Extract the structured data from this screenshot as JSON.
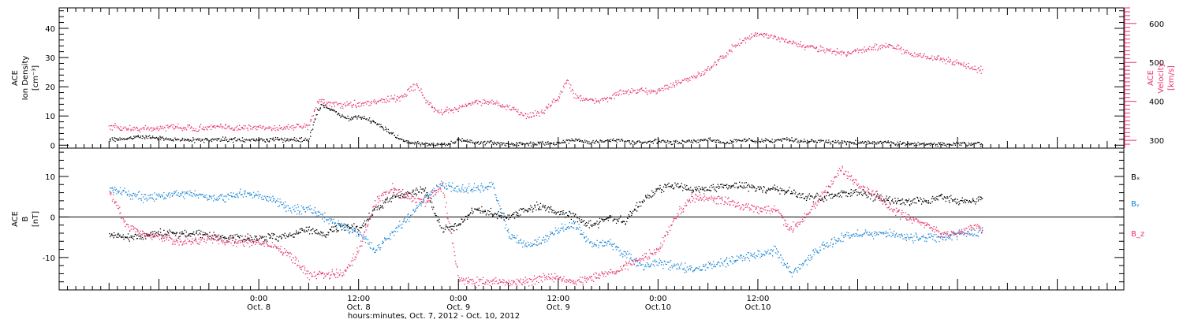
{
  "chart_data": [
    {
      "type": "scatter",
      "panel": "top",
      "ylabel_left": [
        "ACE",
        "Ion Density",
        "[cm⁻³]"
      ],
      "ylabel_right": [
        "ACE",
        "Velocity",
        "[km/s]"
      ],
      "yticks_left": [
        "0",
        "10",
        "20",
        "30",
        "40"
      ],
      "ylim_left": [
        -1,
        47
      ],
      "yticks_right": [
        "300",
        "400",
        "500",
        "600"
      ],
      "ylim_right": [
        280,
        640
      ],
      "colors": {
        "density": "#000000",
        "velocity": "#e8336b"
      },
      "series": [
        {
          "id": "density",
          "axis": "left",
          "x_hours": [
            -18,
            -16,
            -14,
            -12,
            -10,
            -8,
            -6,
            -4,
            -2,
            0,
            2,
            4,
            6,
            7,
            7.5,
            8,
            9,
            10,
            11,
            12,
            13,
            14,
            15,
            16,
            16.5,
            17,
            18,
            19,
            20,
            21,
            22,
            23,
            24,
            26,
            28,
            30,
            32,
            34,
            36,
            38,
            40,
            42,
            44,
            46,
            48,
            50,
            52,
            54,
            56,
            58,
            60,
            62,
            64,
            66,
            68,
            70,
            72,
            74,
            76,
            78,
            80,
            82,
            84,
            86,
            87
          ],
          "values": [
            2,
            2.5,
            3,
            2.5,
            2,
            2,
            2,
            2,
            2,
            2,
            2,
            2,
            2,
            12,
            14,
            13,
            12,
            10,
            9,
            10,
            9,
            8,
            6,
            4,
            3,
            2,
            1,
            1,
            0.5,
            0.5,
            0.5,
            0.5,
            2,
            1,
            1,
            0.5,
            0.5,
            1,
            1,
            2,
            1,
            2,
            1.5,
            1,
            1.5,
            1,
            1.5,
            2,
            1,
            2,
            1.5,
            2,
            2,
            1.5,
            1.5,
            1,
            1,
            1,
            1,
            0.5,
            0.5,
            0.5,
            0.5,
            0.5,
            0.5
          ]
        },
        {
          "id": "velocity",
          "axis": "right",
          "x_hours": [
            -18,
            -16,
            -14,
            -12,
            -10,
            -8,
            -6,
            -4,
            -2,
            0,
            2,
            4,
            6,
            7,
            7.5,
            8,
            10,
            12,
            14,
            16,
            17,
            18,
            19,
            20,
            21,
            22,
            24,
            26,
            28,
            30,
            32,
            34,
            35,
            36,
            37,
            38,
            40,
            42,
            44,
            46,
            48,
            50,
            52,
            54,
            56,
            58,
            60,
            62,
            64,
            66,
            68,
            70,
            72,
            74,
            76,
            78,
            80,
            82,
            84,
            86,
            87
          ],
          "values": [
            335,
            332,
            330,
            333,
            336,
            332,
            334,
            335,
            333,
            335,
            333,
            336,
            337,
            400,
            405,
            395,
            392,
            395,
            400,
            408,
            410,
            430,
            445,
            405,
            380,
            372,
            385,
            400,
            400,
            385,
            365,
            370,
            395,
            410,
            455,
            415,
            400,
            410,
            425,
            428,
            430,
            445,
            460,
            485,
            520,
            555,
            575,
            565,
            550,
            540,
            535,
            525,
            530,
            540,
            545,
            525,
            515,
            510,
            500,
            485,
            480
          ]
        }
      ]
    },
    {
      "type": "scatter",
      "panel": "bottom",
      "ylabel_left": [
        "ACE",
        "B",
        "[nT]"
      ],
      "yticks_left": [
        "-10",
        "0",
        "10"
      ],
      "ylim_left": [
        -18,
        17
      ],
      "zero_line": true,
      "legend_placement": "right",
      "legend": [
        {
          "label": "Bₓ",
          "color": "#000000"
        },
        {
          "label": "Bᵧ",
          "color": "#1a86d6"
        },
        {
          "label": "B_z",
          "color": "#e8336b"
        }
      ],
      "series": [
        {
          "id": "bx",
          "x_hours": [
            -18,
            -16,
            -14,
            -12,
            -10,
            -8,
            -6,
            -4,
            -2,
            0,
            2,
            4,
            6,
            8,
            10,
            12,
            14,
            16,
            18,
            20,
            22,
            24,
            26,
            28,
            30,
            32,
            34,
            36,
            38,
            40,
            42,
            44,
            46,
            48,
            50,
            52,
            54,
            56,
            58,
            60,
            62,
            64,
            66,
            68,
            70,
            72,
            74,
            76,
            78,
            80,
            82,
            84,
            86,
            87
          ],
          "values": [
            -4,
            -5,
            -4.5,
            -4,
            -4,
            -4,
            -4.5,
            -5,
            -5,
            -5,
            -5,
            -4,
            -3,
            -4,
            -2,
            -3,
            2,
            5,
            6,
            7,
            -3,
            -2,
            2,
            1,
            0,
            2,
            3,
            1,
            0,
            -2,
            0,
            -1,
            4,
            7,
            8,
            7,
            7,
            8,
            8,
            7,
            7,
            6,
            5,
            5,
            6,
            6,
            5,
            4,
            4,
            4,
            5,
            4,
            4,
            5
          ]
        },
        {
          "id": "by",
          "x_hours": [
            -18,
            -16,
            -14,
            -12,
            -10,
            -8,
            -6,
            -4,
            -2,
            0,
            2,
            4,
            6,
            8,
            10,
            12,
            14,
            16,
            18,
            20,
            22,
            24,
            26,
            28,
            30,
            32,
            34,
            36,
            38,
            40,
            42,
            44,
            46,
            48,
            50,
            52,
            54,
            56,
            58,
            60,
            62,
            64,
            66,
            68,
            70,
            72,
            74,
            76,
            78,
            80,
            82,
            84,
            86,
            87
          ],
          "values": [
            7,
            6,
            5,
            5,
            6,
            6,
            5,
            5,
            6,
            5,
            4,
            2,
            2,
            0,
            -2,
            -4,
            -8,
            -4,
            0,
            5,
            8,
            7,
            7,
            8,
            -4,
            -7,
            -6,
            -3,
            -2,
            -7,
            -6,
            -9,
            -12,
            -11,
            -12,
            -13,
            -12,
            -11,
            -10,
            -9,
            -8,
            -14,
            -10,
            -7,
            -5,
            -4,
            -4,
            -4,
            -5,
            -5,
            -5,
            -4,
            -4,
            -3
          ]
        },
        {
          "id": "bz",
          "x_hours": [
            -18,
            -17,
            -16,
            -14,
            -12,
            -10,
            -8,
            -6,
            -4,
            -2,
            0,
            2,
            4,
            6,
            8,
            10,
            12,
            14,
            16,
            18,
            20,
            22,
            24,
            26,
            28,
            30,
            32,
            34,
            36,
            38,
            40,
            42,
            44,
            46,
            48,
            50,
            52,
            54,
            56,
            58,
            60,
            62,
            64,
            66,
            68,
            70,
            72,
            74,
            76,
            78,
            80,
            82,
            84,
            86,
            87
          ],
          "values": [
            6,
            3,
            -2,
            -4,
            -5,
            -6,
            -6,
            -5,
            -6,
            -6,
            -6,
            -7,
            -10,
            -14,
            -14,
            -14,
            -8,
            4,
            7,
            5,
            4,
            8,
            -15,
            -16,
            -16,
            -16,
            -16,
            -15,
            -15,
            -16,
            -15,
            -14,
            -12,
            -10,
            -8,
            0,
            5,
            5,
            4,
            3,
            2,
            2,
            -3,
            1,
            6,
            12,
            8,
            6,
            2,
            0,
            -2,
            -4,
            -4,
            -2,
            -3
          ]
        }
      ]
    }
  ],
  "x_axis": {
    "xlabel": "hours:minutes, Oct.  7, 2012 - Oct. 10, 2012",
    "xlim_hours": [
      -24,
      104
    ],
    "ticks": [
      {
        "hours": 0,
        "time": "0:00",
        "date": "Oct. 8"
      },
      {
        "hours": 12,
        "time": "12:00",
        "date": "Oct. 8"
      },
      {
        "hours": 24,
        "time": "0:00",
        "date": "Oct. 9"
      },
      {
        "hours": 36,
        "time": "12:00",
        "date": "Oct. 9"
      },
      {
        "hours": 48,
        "time": "0:00",
        "date": "Oct.10"
      },
      {
        "hours": 60,
        "time": "12:00",
        "date": "Oct.10"
      }
    ]
  }
}
